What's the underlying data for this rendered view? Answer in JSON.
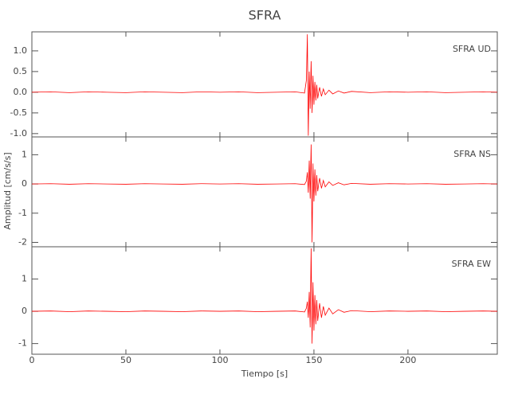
{
  "chart_data": {
    "type": "line",
    "title": "SFRA",
    "x_label": "Tiempo [s]",
    "y_label": "Amplitud [cm/s/s]",
    "color": "#ff0000",
    "xlim": [
      0,
      247.5
    ],
    "xticks": [
      0,
      50,
      100,
      150,
      200
    ],
    "x": [
      0,
      10,
      20,
      30,
      40,
      50,
      60,
      70,
      80,
      90,
      100,
      110,
      120,
      130,
      140,
      145,
      146,
      146.5,
      147,
      147.5,
      148,
      148.5,
      149,
      149.5,
      150,
      150.5,
      151,
      151.5,
      152,
      153,
      154,
      155,
      156,
      158,
      160,
      163,
      166,
      170,
      180,
      190,
      200,
      210,
      220,
      230,
      240,
      247.5
    ],
    "panels": [
      {
        "label": "SFRA   UD",
        "ylim": [
          -1.08,
          1.46
        ],
        "yticks": [
          {
            "value": -1,
            "label": "-1.0"
          },
          -0.5,
          {
            "value": 0,
            "label": "0.0"
          },
          0.5,
          {
            "value": 1,
            "label": "1.0"
          }
        ],
        "values": [
          0,
          0.01,
          -0.01,
          0.01,
          0,
          -0.01,
          0.01,
          0,
          -0.01,
          0.01,
          0,
          0.01,
          -0.01,
          0,
          0.01,
          -0.02,
          0.3,
          1.4,
          -1.05,
          0.5,
          -0.4,
          0.75,
          -0.5,
          0.4,
          -0.3,
          0.25,
          -0.2,
          0.18,
          -0.15,
          0.12,
          -0.1,
          0.08,
          -0.06,
          0.05,
          -0.04,
          0.03,
          -0.02,
          0.02,
          -0.01,
          0.01,
          0,
          0.01,
          -0.01,
          0,
          0.01,
          0
        ]
      },
      {
        "label": "SFRA   NS",
        "ylim": [
          -2.15,
          1.61
        ],
        "yticks": [
          -2,
          -1,
          0,
          1
        ],
        "values": [
          0,
          0.01,
          -0.01,
          0.01,
          0,
          -0.01,
          0.01,
          0,
          -0.01,
          0.01,
          0,
          0.01,
          -0.01,
          0,
          0.01,
          -0.02,
          0.1,
          0.4,
          -0.3,
          0.8,
          -0.5,
          1.35,
          -2.0,
          0.7,
          -0.6,
          0.5,
          -0.4,
          0.3,
          -0.25,
          0.2,
          -0.15,
          0.12,
          -0.1,
          0.07,
          -0.05,
          0.04,
          -0.03,
          0.02,
          -0.01,
          0.01,
          0,
          0.01,
          -0.01,
          0,
          0.01,
          0
        ]
      },
      {
        "label": "SFRA   EW",
        "ylim": [
          -1.33,
          2.0
        ],
        "yticks": [
          -1,
          0,
          1
        ],
        "values": [
          0,
          0.01,
          -0.01,
          0.01,
          0,
          -0.01,
          0.01,
          0,
          -0.01,
          0.01,
          0,
          0.01,
          -0.01,
          0,
          0.01,
          -0.02,
          0.1,
          0.3,
          -0.2,
          0.6,
          -0.5,
          1.95,
          -1.0,
          0.9,
          -0.6,
          0.5,
          -0.4,
          0.35,
          -0.3,
          0.25,
          -0.2,
          0.15,
          -0.12,
          0.1,
          -0.08,
          0.05,
          -0.03,
          0.02,
          -0.01,
          0.01,
          0,
          0.01,
          -0.01,
          0,
          0.01,
          0
        ]
      }
    ]
  }
}
